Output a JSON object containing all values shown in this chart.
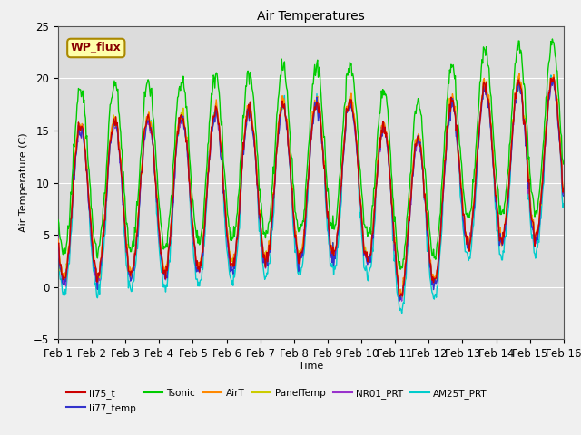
{
  "title": "Air Temperatures",
  "xlabel": "Time",
  "ylabel": "Air Temperature (C)",
  "ylim": [
    -5,
    25
  ],
  "plot_bg_color": "#dcdcdc",
  "fig_bg_color": "#f0f0f0",
  "legend_entries": [
    "li75_t",
    "li77_temp",
    "Tsonic",
    "AirT",
    "PanelTemp",
    "NR01_PRT",
    "AM25T_PRT"
  ],
  "legend_colors": [
    "#cc0000",
    "#3333cc",
    "#00cc00",
    "#ff8800",
    "#cccc00",
    "#9933cc",
    "#00cccc"
  ],
  "wp_flux_label": "WP_flux",
  "wp_flux_bg": "#ffffaa",
  "wp_flux_border": "#aa8800",
  "wp_flux_text_color": "#880000",
  "xtick_labels": [
    "Feb 1",
    "Feb 2",
    "Feb 3",
    "Feb 4",
    "Feb 5",
    "Feb 6",
    "Feb 7",
    "Feb 8",
    "Feb 9",
    "Feb 10",
    "Feb 11",
    "Feb 12",
    "Feb 13",
    "Feb 14",
    "Feb 15",
    "Feb 16"
  ],
  "grid_color": "#ffffff",
  "line_width": 1.0
}
